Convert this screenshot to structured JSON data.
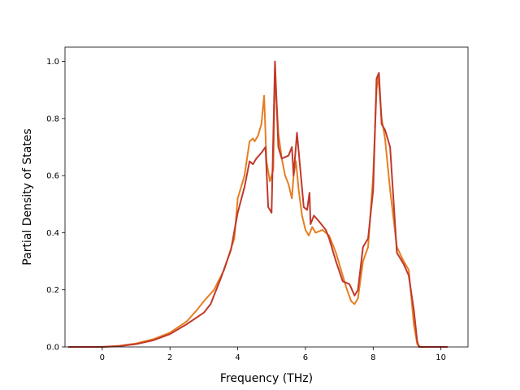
{
  "chart_data": {
    "type": "line",
    "title": "",
    "xlabel": "Frequency (THz)",
    "ylabel": "Partial Density of States",
    "xlim": [
      -1.1,
      10.8
    ],
    "ylim": [
      0.0,
      1.05
    ],
    "xticks": [
      0,
      2,
      4,
      6,
      8,
      10
    ],
    "yticks": [
      0.0,
      0.2,
      0.4,
      0.6,
      0.8,
      1.0
    ],
    "xtick_labels": [
      "0",
      "2",
      "4",
      "6",
      "8",
      "10"
    ],
    "ytick_labels": [
      "0.0",
      "0.2",
      "0.4",
      "0.6",
      "0.8",
      "1.0"
    ],
    "grid": false,
    "legend": "none",
    "series": [
      {
        "color": "#e67e22",
        "points": [
          [
            -1.0,
            0.0
          ],
          [
            0.0,
            0.0
          ],
          [
            0.5,
            0.004
          ],
          [
            1.0,
            0.012
          ],
          [
            1.5,
            0.027
          ],
          [
            2.0,
            0.05
          ],
          [
            2.5,
            0.09
          ],
          [
            2.8,
            0.13
          ],
          [
            3.0,
            0.16
          ],
          [
            3.3,
            0.2
          ],
          [
            3.6,
            0.27
          ],
          [
            3.9,
            0.38
          ],
          [
            4.0,
            0.52
          ],
          [
            4.2,
            0.6
          ],
          [
            4.35,
            0.72
          ],
          [
            4.45,
            0.73
          ],
          [
            4.5,
            0.72
          ],
          [
            4.6,
            0.74
          ],
          [
            4.7,
            0.78
          ],
          [
            4.78,
            0.88
          ],
          [
            4.85,
            0.65
          ],
          [
            4.95,
            0.58
          ],
          [
            5.05,
            0.62
          ],
          [
            5.1,
            0.96
          ],
          [
            5.2,
            0.75
          ],
          [
            5.3,
            0.66
          ],
          [
            5.4,
            0.6
          ],
          [
            5.5,
            0.57
          ],
          [
            5.6,
            0.52
          ],
          [
            5.65,
            0.6
          ],
          [
            5.72,
            0.65
          ],
          [
            5.8,
            0.55
          ],
          [
            5.9,
            0.46
          ],
          [
            6.0,
            0.41
          ],
          [
            6.1,
            0.39
          ],
          [
            6.2,
            0.42
          ],
          [
            6.3,
            0.4
          ],
          [
            6.5,
            0.41
          ],
          [
            6.7,
            0.39
          ],
          [
            6.9,
            0.33
          ],
          [
            7.0,
            0.29
          ],
          [
            7.2,
            0.21
          ],
          [
            7.35,
            0.16
          ],
          [
            7.45,
            0.15
          ],
          [
            7.55,
            0.17
          ],
          [
            7.7,
            0.3
          ],
          [
            7.85,
            0.35
          ],
          [
            8.0,
            0.6
          ],
          [
            8.1,
            0.9
          ],
          [
            8.15,
            0.95
          ],
          [
            8.25,
            0.8
          ],
          [
            8.35,
            0.73
          ],
          [
            8.5,
            0.55
          ],
          [
            8.7,
            0.35
          ],
          [
            8.9,
            0.3
          ],
          [
            9.05,
            0.27
          ],
          [
            9.2,
            0.08
          ],
          [
            9.3,
            0.01
          ],
          [
            9.4,
            0.0
          ],
          [
            10.2,
            0.0
          ]
        ]
      },
      {
        "color": "#c0392b",
        "points": [
          [
            -1.0,
            0.0
          ],
          [
            0.0,
            0.0
          ],
          [
            0.5,
            0.003
          ],
          [
            1.0,
            0.01
          ],
          [
            1.5,
            0.023
          ],
          [
            2.0,
            0.045
          ],
          [
            2.5,
            0.08
          ],
          [
            3.0,
            0.12
          ],
          [
            3.2,
            0.15
          ],
          [
            3.5,
            0.24
          ],
          [
            3.8,
            0.34
          ],
          [
            4.0,
            0.47
          ],
          [
            4.2,
            0.56
          ],
          [
            4.35,
            0.65
          ],
          [
            4.45,
            0.64
          ],
          [
            4.55,
            0.66
          ],
          [
            4.7,
            0.68
          ],
          [
            4.82,
            0.7
          ],
          [
            4.9,
            0.49
          ],
          [
            5.0,
            0.47
          ],
          [
            5.1,
            1.0
          ],
          [
            5.2,
            0.7
          ],
          [
            5.3,
            0.66
          ],
          [
            5.5,
            0.67
          ],
          [
            5.6,
            0.7
          ],
          [
            5.65,
            0.6
          ],
          [
            5.75,
            0.75
          ],
          [
            5.85,
            0.62
          ],
          [
            5.95,
            0.49
          ],
          [
            6.05,
            0.48
          ],
          [
            6.12,
            0.54
          ],
          [
            6.15,
            0.43
          ],
          [
            6.25,
            0.46
          ],
          [
            6.4,
            0.44
          ],
          [
            6.6,
            0.41
          ],
          [
            6.7,
            0.38
          ],
          [
            6.9,
            0.3
          ],
          [
            7.1,
            0.23
          ],
          [
            7.3,
            0.22
          ],
          [
            7.45,
            0.18
          ],
          [
            7.55,
            0.2
          ],
          [
            7.7,
            0.35
          ],
          [
            7.85,
            0.38
          ],
          [
            8.0,
            0.55
          ],
          [
            8.1,
            0.94
          ],
          [
            8.17,
            0.96
          ],
          [
            8.25,
            0.78
          ],
          [
            8.35,
            0.76
          ],
          [
            8.5,
            0.7
          ],
          [
            8.7,
            0.33
          ],
          [
            8.9,
            0.29
          ],
          [
            9.05,
            0.25
          ],
          [
            9.2,
            0.13
          ],
          [
            9.3,
            0.02
          ],
          [
            9.35,
            0.0
          ],
          [
            10.2,
            0.0
          ]
        ]
      }
    ]
  }
}
